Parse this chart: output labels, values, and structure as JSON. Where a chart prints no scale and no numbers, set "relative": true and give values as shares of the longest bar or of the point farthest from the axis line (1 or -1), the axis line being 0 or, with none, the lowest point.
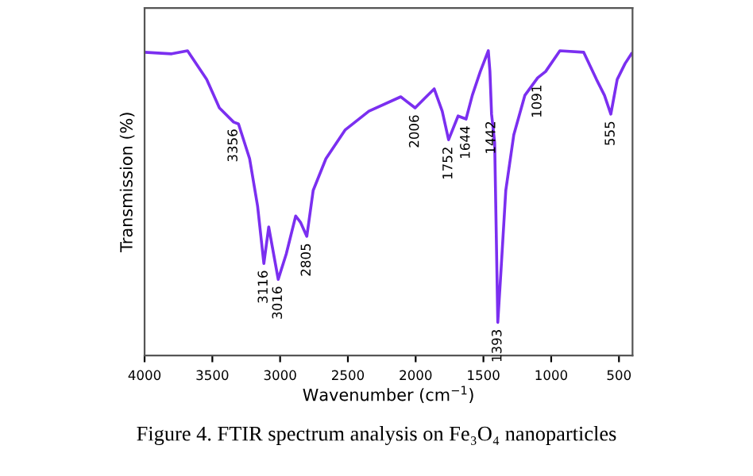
{
  "chart_data": {
    "type": "line",
    "relative": true,
    "xlabel": "Wavenumber (cm$^{−1}$)",
    "ylabel": "Transmission (%)",
    "xlim": [
      4000,
      400
    ],
    "xticks": [
      4000,
      3500,
      3000,
      2500,
      2000,
      1500,
      1000,
      500
    ],
    "series": [
      {
        "color": "#7b2ff0",
        "x": [
          4000,
          3800,
          3683,
          3542,
          3448,
          3343,
          3307,
          3225,
          3166,
          3120,
          3084,
          3014,
          2955,
          2885,
          2850,
          2803,
          2756,
          2662,
          2521,
          2345,
          2110,
          2004,
          1934,
          1863,
          1804,
          1757,
          1687,
          1628,
          1582,
          1523,
          1464,
          1452,
          1440,
          1417,
          1394,
          1370,
          1335,
          1276,
          1194,
          1100,
          1041,
          936,
          760,
          666,
          607,
          560,
          513,
          455,
          408
        ],
        "values": [
          0.995,
          0.99,
          1.0,
          0.906,
          0.8125,
          0.766,
          0.76,
          0.646,
          0.49,
          0.302,
          0.422,
          0.25,
          0.333,
          0.458,
          0.4375,
          0.391,
          0.542,
          0.646,
          0.74,
          0.802,
          0.849,
          0.8125,
          0.844,
          0.875,
          0.802,
          0.708,
          0.786,
          0.776,
          0.854,
          0.932,
          1.0,
          0.932,
          0.792,
          0.698,
          0.109,
          0.281,
          0.542,
          0.724,
          0.854,
          0.911,
          0.932,
          1.0,
          0.995,
          0.906,
          0.854,
          0.792,
          0.906,
          0.958,
          0.99
        ]
      }
    ],
    "annotations": [
      {
        "text": "3356",
        "x": 3343,
        "y": 0.766
      },
      {
        "text": "3116",
        "x": 3120,
        "y": 0.302
      },
      {
        "text": "3016",
        "x": 3014,
        "y": 0.25
      },
      {
        "text": "2805",
        "x": 2803,
        "y": 0.391
      },
      {
        "text": "2006",
        "x": 2004,
        "y": 0.8125
      },
      {
        "text": "1752",
        "x": 1757,
        "y": 0.708
      },
      {
        "text": "1644",
        "x": 1628,
        "y": 0.776
      },
      {
        "text": "1442",
        "x": 1440,
        "y": 0.792
      },
      {
        "text": "1393",
        "x": 1394,
        "y": 0.109
      },
      {
        "text": "1091",
        "x": 1100,
        "y": 0.911
      },
      {
        "text": "555",
        "x": 560,
        "y": 0.792
      },
      "Figure 4. FTIR spectrum analysis on Fe₃O₄ nanoparticles"
    ],
    "grid": false,
    "marker": "none",
    "line_style": "solid"
  }
}
